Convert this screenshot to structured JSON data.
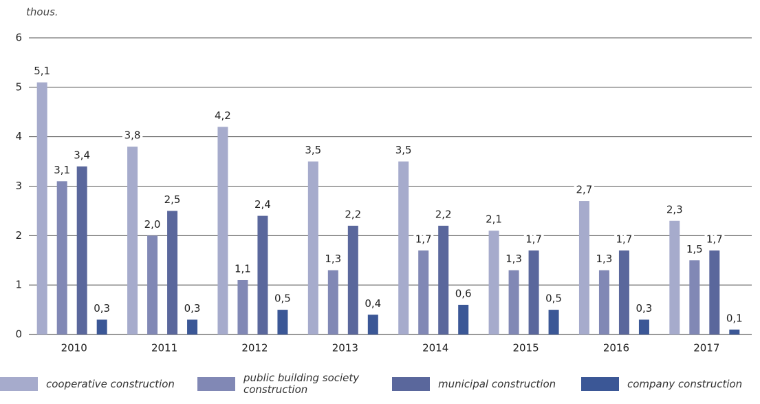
{
  "chart_data": {
    "type": "bar",
    "y_label": "thous.",
    "categories": [
      "2010",
      "2011",
      "2012",
      "2013",
      "2014",
      "2015",
      "2016",
      "2017"
    ],
    "series": [
      {
        "name": "cooperative construction",
        "color": "#a6abcc",
        "values": [
          5.1,
          3.8,
          4.2,
          3.5,
          3.5,
          2.1,
          2.7,
          2.3
        ],
        "value_labels": [
          "5,1",
          "3,8",
          "4,2",
          "3,5",
          "3,5",
          "2,1",
          "2,7",
          "2,3"
        ]
      },
      {
        "name": "public building society construction",
        "color": "#8188b5",
        "values": [
          3.1,
          2.0,
          1.1,
          1.3,
          1.7,
          1.3,
          1.3,
          1.5
        ],
        "value_labels": [
          "3,1",
          "2,0",
          "1,1",
          "1,3",
          "1,7",
          "1,3",
          "1,3",
          "1,5"
        ]
      },
      {
        "name": "municipal construction",
        "color": "#5a679c",
        "values": [
          3.4,
          2.5,
          2.4,
          2.2,
          2.2,
          1.7,
          1.7,
          1.7
        ],
        "value_labels": [
          "3,4",
          "2,5",
          "2,4",
          "2,2",
          "2,2",
          "1,7",
          "1,7",
          "1,7"
        ]
      },
      {
        "name": "company  construction",
        "color": "#3b5796",
        "values": [
          0.3,
          0.3,
          0.5,
          0.4,
          0.6,
          0.5,
          0.3,
          0.1
        ],
        "value_labels": [
          "0,3",
          "0,3",
          "0,5",
          "0,4",
          "0,6",
          "0,5",
          "0,3",
          "0,1"
        ]
      }
    ],
    "ylim": [
      0,
      6
    ],
    "yticks": [
      0,
      1,
      2,
      3,
      4,
      5,
      6
    ],
    "grid": true
  }
}
